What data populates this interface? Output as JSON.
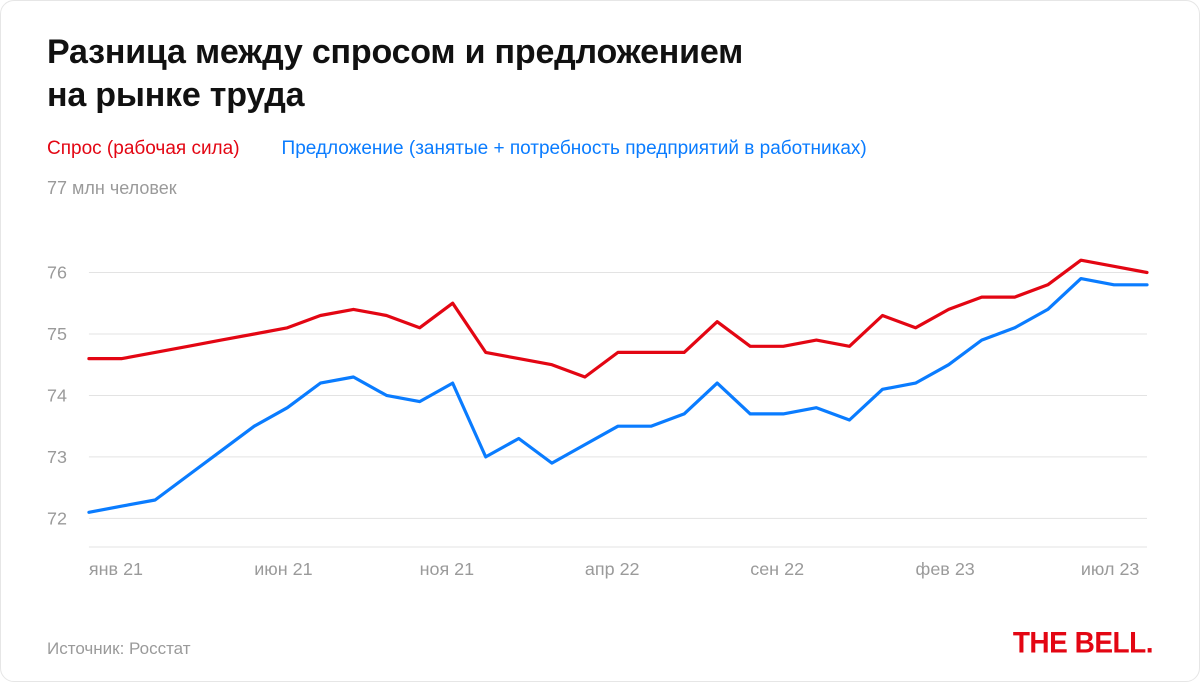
{
  "chart": {
    "type": "line",
    "title_line1": "Разница между спросом и предложением",
    "title_line2": "на рынке труда",
    "title_fontsize": 34,
    "title_color": "#111111",
    "legend": {
      "demand": {
        "label": "Спрос (рабочая сила)",
        "color": "#e30613"
      },
      "supply": {
        "label": "Предложение (занятые + потребность предприятий в работниках)",
        "color": "#0a7cff"
      },
      "fontsize": 19
    },
    "y_axis": {
      "top_label": "77 млн человек",
      "ticks": [
        76,
        75,
        74,
        73,
        72
      ],
      "ylim": [
        71.6,
        77
      ],
      "label_color": "#9a9a9a",
      "label_fontsize": 18,
      "grid_color": "#e3e3e3"
    },
    "x_axis": {
      "n_points": 33,
      "tick_labels": [
        "янв 21",
        "июн 21",
        "ноя 21",
        "апр 22",
        "сен 22",
        "фев 23",
        "июл 23"
      ],
      "tick_indices": [
        0,
        5,
        10,
        15,
        20,
        25,
        30
      ],
      "label_color": "#9a9a9a",
      "label_fontsize": 18
    },
    "series": {
      "demand": {
        "color": "#e30613",
        "line_width": 3.2,
        "values": [
          74.6,
          74.6,
          74.7,
          74.8,
          74.9,
          75.0,
          75.1,
          75.3,
          75.4,
          75.3,
          75.1,
          75.5,
          74.7,
          74.6,
          74.5,
          74.3,
          74.7,
          74.7,
          74.7,
          75.2,
          74.8,
          74.8,
          74.9,
          74.8,
          75.3,
          75.1,
          75.4,
          75.6,
          75.6,
          75.8,
          76.2,
          76.1,
          76.0
        ]
      },
      "supply": {
        "color": "#0a7cff",
        "line_width": 3.2,
        "values": [
          72.1,
          72.2,
          72.3,
          72.7,
          73.1,
          73.5,
          73.8,
          74.2,
          74.3,
          74.0,
          73.9,
          74.2,
          73.0,
          73.3,
          72.9,
          73.2,
          73.5,
          73.5,
          73.7,
          74.2,
          73.7,
          73.7,
          73.8,
          73.6,
          74.1,
          74.2,
          74.5,
          74.9,
          75.1,
          75.4,
          75.9,
          75.8,
          75.8
        ]
      }
    },
    "background_color": "#ffffff",
    "card_border_color": "#e6e6e6",
    "card_border_radius": 14
  },
  "footer": {
    "source_label": "Источник: Росстат",
    "source_color": "#9a9a9a",
    "brand_text": "THE BELL.",
    "brand_color": "#e30613"
  }
}
